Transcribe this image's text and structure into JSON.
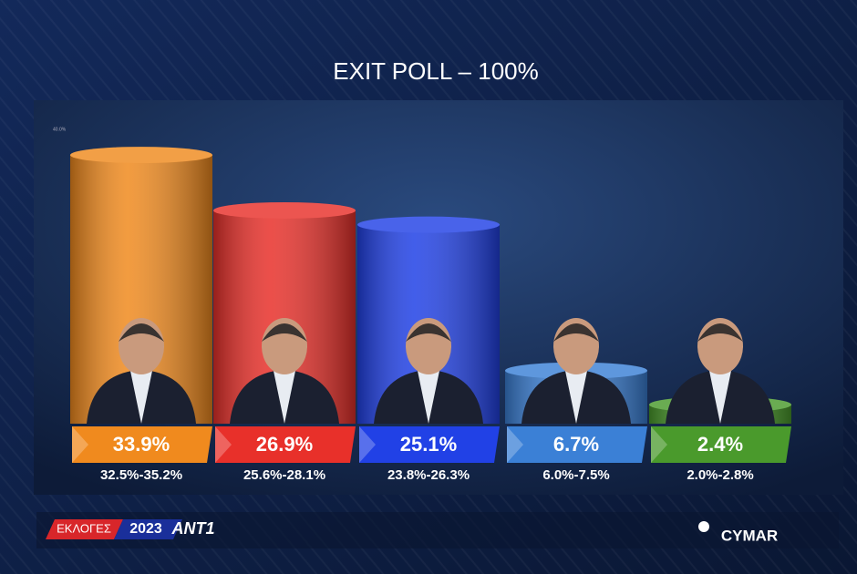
{
  "chart_data": {
    "type": "bar",
    "title": "EXIT POLL – 100%",
    "categories": [
      null,
      null,
      null,
      null,
      null
    ],
    "values": [
      33.9,
      26.9,
      25.1,
      6.7,
      2.4
    ],
    "value_labels": [
      "33.9%",
      "26.9%",
      "25.1%",
      "6.7%",
      "2.4%"
    ],
    "range_labels": [
      "32.5%-35.2%",
      "25.6%-28.1%",
      "23.8%-26.3%",
      "6.0%-7.5%",
      "2.0%-2.8%"
    ],
    "colors": [
      "#f08a1e",
      "#e8302a",
      "#2141e6",
      "#3b80d6",
      "#4a9a2c"
    ],
    "ylim": [
      0,
      40
    ],
    "yticks": [
      {
        "value": 40,
        "label": "40.0%"
      }
    ]
  },
  "footer": {
    "election": "ΕΚΛΟΓΕΣ",
    "year": "2023",
    "channel": "ANT1",
    "pollster": "CYMAR"
  }
}
